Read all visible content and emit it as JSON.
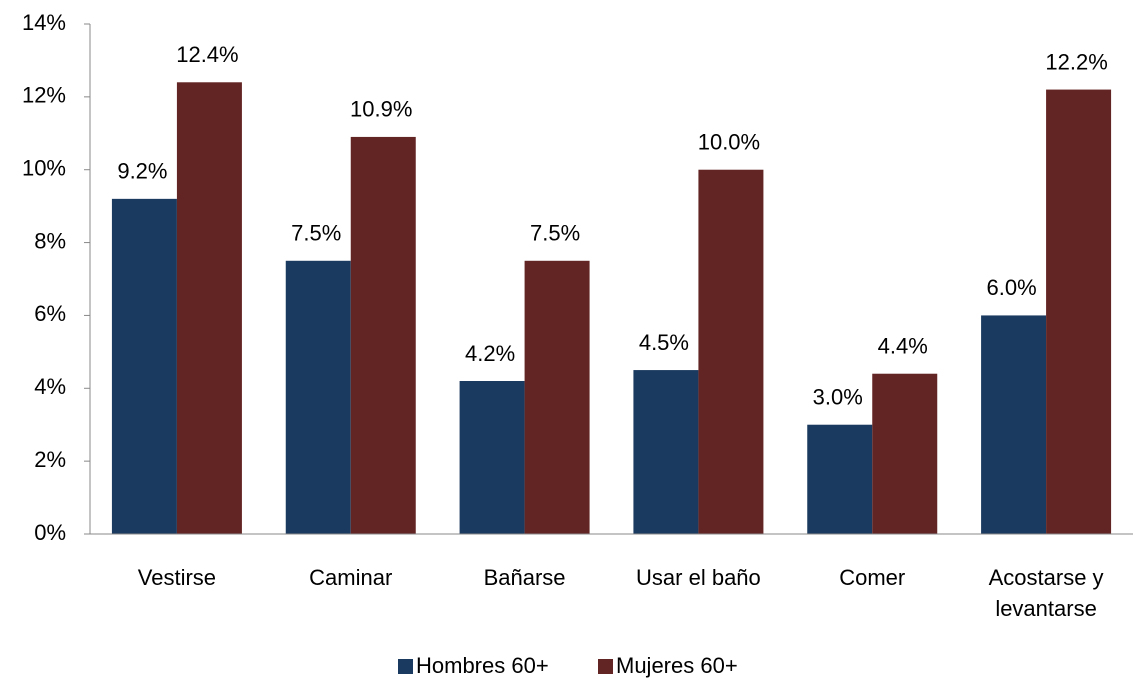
{
  "chart_data": {
    "type": "bar",
    "categories": [
      "Vestirse",
      "Caminar",
      "Bañarse",
      "Usar el baño",
      "Comer",
      "Acostarse y levantarse"
    ],
    "series": [
      {
        "name": "Hombres 60+",
        "color": "#1b3a5f",
        "values": [
          9.2,
          7.5,
          4.2,
          4.5,
          3.0,
          6.0
        ],
        "value_labels": [
          "9.2%",
          "7.5%",
          "4.2%",
          "4.5%",
          "3.0%",
          "6.0%"
        ]
      },
      {
        "name": "Mujeres 60+",
        "color": "#632523",
        "values": [
          12.4,
          10.9,
          7.5,
          10.0,
          4.4,
          12.2
        ],
        "value_labels": [
          "12.4%",
          "10.9%",
          "7.5%",
          "10.0%",
          "4.4%",
          "12.2%"
        ]
      }
    ],
    "ylim": [
      0,
      14
    ],
    "yticks": [
      {
        "value": 0,
        "label": "0%"
      },
      {
        "value": 2,
        "label": "2%"
      },
      {
        "value": 4,
        "label": "4%"
      },
      {
        "value": 6,
        "label": "6%"
      },
      {
        "value": 8,
        "label": "8%"
      },
      {
        "value": 10,
        "label": "10%"
      },
      {
        "value": 12,
        "label": "12%"
      },
      {
        "value": 14,
        "label": "14%"
      }
    ],
    "grid": false,
    "legend": "bottom"
  }
}
